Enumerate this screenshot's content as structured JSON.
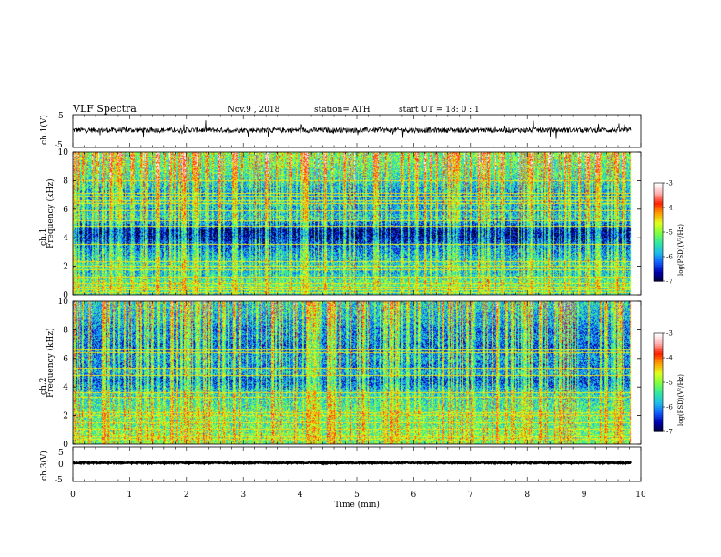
{
  "header": {
    "title": "VLF  Spectra",
    "date": "Nov.9  , 2018",
    "station": "station= ATH",
    "start": "start  UT  =    18: 0   : 1"
  },
  "colors": {
    "waveform": "#000000",
    "colormap": [
      "#000030",
      "#0000b0",
      "#1060ff",
      "#20c0e8",
      "#30e8a0",
      "#80ff40",
      "#e0ff20",
      "#ffa000",
      "#ff2000",
      "#ffb0b0",
      "#ffffff"
    ]
  },
  "chart_data": [
    {
      "type": "line",
      "id": "ch1-waveform",
      "ylabel": "ch.1(V)",
      "ylim": [
        -5,
        5
      ],
      "yticks": [
        "5",
        "-5"
      ],
      "xlim": [
        0,
        10
      ],
      "x_end": 9.83,
      "baseline": 0.3,
      "noise_amplitude": 0.8
    },
    {
      "type": "heatmap",
      "id": "ch1-spectrogram",
      "ylabel": "ch.1\nFrequency  (kHz)",
      "ylim": [
        0,
        10
      ],
      "yticks": [
        "0",
        "2",
        "4",
        "6",
        "8",
        "10"
      ],
      "xlim": [
        0,
        10
      ],
      "x_end": 9.83,
      "colorbar": {
        "label": "log(PSD)(V²/Hz)",
        "range": [
          -7,
          -3
        ],
        "ticks": [
          "-3",
          "-4",
          "-5",
          "-6",
          "-7"
        ]
      },
      "profile_khz": [
        0,
        0.5,
        1,
        1.5,
        2,
        2.5,
        3,
        3.5,
        4,
        4.5,
        5,
        5.5,
        6,
        6.5,
        7,
        7.5,
        8,
        8.5,
        9,
        9.5,
        10
      ],
      "profile_log_psd": [
        -5.6,
        -5.3,
        -5.4,
        -5.8,
        -5.6,
        -5.8,
        -6.0,
        -6.3,
        -6.7,
        -6.8,
        -6.1,
        -5.7,
        -5.9,
        -5.7,
        -6.0,
        -5.8,
        -5.6,
        -5.4,
        -5.3,
        -5.2,
        -5.1
      ],
      "tones_khz": [
        0.1,
        0.3,
        0.5,
        0.75,
        0.8,
        1.2,
        1.7,
        2.0,
        2.3,
        3.5,
        4.8,
        5.2,
        5.4,
        5.9,
        6.4,
        6.6,
        6.9,
        7.1,
        8.0
      ],
      "sferics_per_min": 9
    },
    {
      "type": "heatmap",
      "id": "ch2-spectrogram",
      "ylabel": "ch.2\nFrequency  (kHz)",
      "ylim": [
        0,
        10
      ],
      "yticks": [
        "0",
        "2",
        "4",
        "6",
        "8",
        "10"
      ],
      "xlim": [
        0,
        10
      ],
      "x_end": 9.83,
      "colorbar": {
        "label": "log(PSD)(V²/Hz)",
        "range": [
          -7,
          -3
        ],
        "ticks": [
          "-3",
          "-4",
          "-5",
          "-6",
          "-7"
        ]
      },
      "profile_khz": [
        0,
        0.5,
        1,
        1.5,
        2,
        2.5,
        3,
        3.5,
        4,
        4.5,
        5,
        5.5,
        6,
        6.5,
        7,
        7.5,
        8,
        8.5,
        9,
        9.5,
        10
      ],
      "profile_log_psd": [
        -5.2,
        -5.1,
        -5.2,
        -5.3,
        -5.2,
        -5.4,
        -5.5,
        -5.6,
        -6.0,
        -6.3,
        -5.8,
        -6.1,
        -5.9,
        -6.1,
        -6.2,
        -6.0,
        -6.1,
        -5.9,
        -5.8,
        -5.7,
        -5.6
      ],
      "tones_khz": [
        0.3,
        0.5,
        1.0,
        1.5,
        2.0,
        2.2,
        3.3,
        3.6,
        4.8,
        5.3,
        6.4,
        6.6
      ],
      "sferics_per_min": 9
    },
    {
      "type": "line",
      "id": "ch3-waveform",
      "ylabel": "ch.3(V)",
      "ylim": [
        -5,
        5
      ],
      "yticks": [
        "5",
        "0",
        "-5"
      ],
      "xlim": [
        0,
        10
      ],
      "x_end": 9.83,
      "baseline": 0.4,
      "noise_amplitude": 0.15
    }
  ],
  "xaxis": {
    "label": "Time  (min)",
    "ticks": [
      "0",
      "1",
      "2",
      "3",
      "4",
      "5",
      "6",
      "7",
      "8",
      "9",
      "10"
    ]
  }
}
